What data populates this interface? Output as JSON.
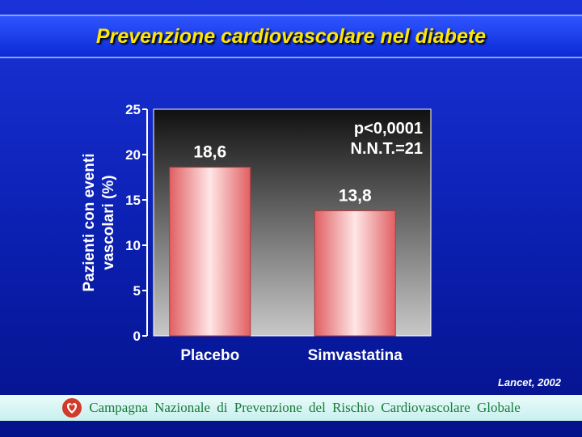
{
  "slide": {
    "title": "Prevenzione cardiovascolare nel diabete",
    "citation": "Lancet, 2002",
    "footer_text": "Campagna Nazionale di Prevenzione del Rischio Cardiovascolare Globale",
    "footer_logo_icon": "heart-logo-icon"
  },
  "colors": {
    "title": "#ffe600",
    "bar": "#e86a6a",
    "bar_highlight": "#ffe0e0",
    "footer_text": "#1a7a3a"
  },
  "chart_data": {
    "type": "bar",
    "categories": [
      "Placebo",
      "Simvastatina"
    ],
    "values": [
      18.6,
      13.8
    ],
    "value_labels": [
      "18,6",
      "13,8"
    ],
    "ylabel": "Pazienti con eventi vascolari (%)",
    "ylabel_lines": [
      "Pazienti con eventi",
      "vascolari (%)"
    ],
    "xlabel": "",
    "ylim": [
      0,
      25
    ],
    "yticks": [
      0,
      5,
      10,
      15,
      20,
      25
    ],
    "annotations": [
      "p<0,0001",
      "N.N.T.=21"
    ],
    "grid": false,
    "legend": "none"
  }
}
